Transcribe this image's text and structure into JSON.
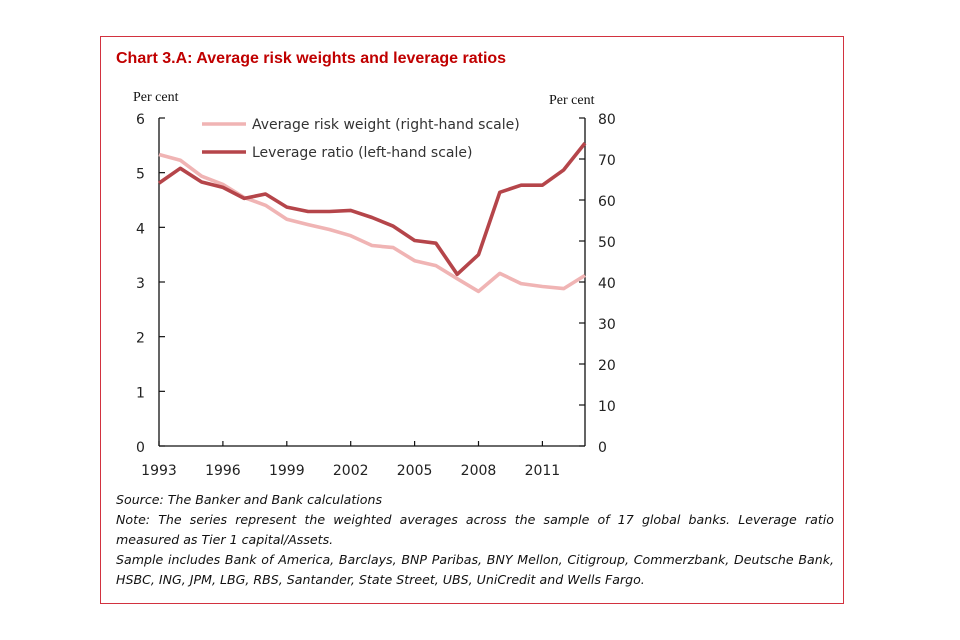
{
  "chart_data": {
    "type": "line",
    "title": "Chart 3.A: Average risk weights and leverage ratios",
    "left_axis": {
      "unit_label": "Per cent",
      "ylim": [
        0,
        6
      ],
      "ticks": [
        "0",
        "1",
        "2",
        "3",
        "4",
        "5",
        "6"
      ]
    },
    "right_axis": {
      "unit_label": "Per cent",
      "ylim": [
        0,
        80
      ],
      "ticks": [
        "0",
        "10",
        "20",
        "30",
        "40",
        "50",
        "60",
        "70",
        "80"
      ]
    },
    "x": [
      1993,
      1994,
      1995,
      1996,
      1997,
      1998,
      1999,
      2000,
      2001,
      2002,
      2003,
      2004,
      2005,
      2006,
      2007,
      2008,
      2009,
      2010,
      2011,
      2012,
      2013
    ],
    "x_ticks": [
      "1993",
      "1996",
      "1999",
      "2002",
      "2005",
      "2008",
      "2011"
    ],
    "xlim": [
      1993,
      2013
    ],
    "grid": false,
    "legend_position": "top",
    "series": [
      {
        "name": "Average risk weight (right-hand scale)",
        "axis": "right",
        "color": "#f0b4b4",
        "values": [
          71.1,
          69.7,
          65.8,
          63.8,
          60.6,
          58.7,
          55.3,
          54.0,
          52.8,
          51.3,
          48.9,
          48.4,
          45.2,
          44.0,
          40.8,
          37.7,
          42.1,
          39.6,
          38.9,
          38.4,
          41.6
        ]
      },
      {
        "name": "Leverage ratio (left-hand scale)",
        "axis": "left",
        "color": "#b5454a",
        "values": [
          4.81,
          5.08,
          4.83,
          4.73,
          4.53,
          4.61,
          4.37,
          4.29,
          4.29,
          4.31,
          4.18,
          4.02,
          3.76,
          3.71,
          3.14,
          3.5,
          4.64,
          4.77,
          4.77,
          5.05,
          5.54
        ]
      }
    ]
  },
  "notes": {
    "source": "Source: The Banker and Bank calculations",
    "note": "Note: The series represent the weighted averages across the sample of 17 global banks.  Leverage ratio measured as Tier 1 capital/Assets.",
    "sample": "Sample includes Bank of America, Barclays, BNP Paribas, BNY Mellon, Citigroup, Commerzbank, Deutsche Bank, HSBC, ING, JPM, LBG, RBS, Santander, State Street, UBS, UniCredit and Wells Fargo."
  },
  "colors": {
    "frame": "#d2323f",
    "title": "#c00000"
  }
}
